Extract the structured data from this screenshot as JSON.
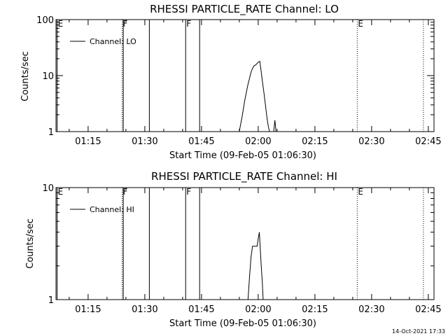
{
  "footer_timestamp": "14-Oct-2021 17:33",
  "chart_data": [
    {
      "type": "line",
      "title": "RHESSI PARTICLE_RATE Channel: LO",
      "xlabel": "Start Time (09-Feb-05 01:06:30)",
      "ylabel": "Counts/sec",
      "yscale": "log",
      "xunit": "minutes after 01:06:30",
      "xlim": [
        0,
        100
      ],
      "ylim": [
        1,
        100
      ],
      "xticks": [
        {
          "v": 8.5,
          "label": "01:15"
        },
        {
          "v": 23.5,
          "label": "01:30"
        },
        {
          "v": 38.5,
          "label": "01:45"
        },
        {
          "v": 53.5,
          "label": "02:00"
        },
        {
          "v": 68.5,
          "label": "02:15"
        },
        {
          "v": 83.5,
          "label": "02:30"
        },
        {
          "v": 98.5,
          "label": "02:45"
        }
      ],
      "yticks": [
        {
          "v": 1,
          "label": "1"
        },
        {
          "v": 10,
          "label": "10"
        },
        {
          "v": 100,
          "label": "100"
        }
      ],
      "legend": {
        "label": "Channel: LO",
        "position": "top-left"
      },
      "markers": [
        {
          "x": 0.3,
          "label": "E",
          "style": "solid"
        },
        {
          "x": 17.5,
          "label": "F",
          "style": "dotted"
        },
        {
          "x": 17.8,
          "label": "",
          "style": "solid"
        },
        {
          "x": 24.7,
          "label": "",
          "style": "solid"
        },
        {
          "x": 34.3,
          "label": "F",
          "style": "solid"
        },
        {
          "x": 38.0,
          "label": "",
          "style": "solid"
        },
        {
          "x": 79.7,
          "label": "E",
          "style": "dotted"
        },
        {
          "x": 97.2,
          "label": "",
          "style": "dotted"
        }
      ],
      "series": [
        {
          "name": "Channel: LO",
          "segments": [
            [
              [
                48.5,
                1.0
              ],
              [
                48.8,
                1.3
              ],
              [
                49.2,
                1.8
              ],
              [
                49.6,
                2.6
              ],
              [
                50.0,
                3.8
              ],
              [
                50.4,
                5.2
              ],
              [
                50.8,
                7.0
              ],
              [
                51.2,
                9.0
              ],
              [
                51.6,
                11.5
              ],
              [
                52.0,
                13.5
              ],
              [
                52.4,
                15.0
              ],
              [
                52.8,
                15.5
              ],
              [
                53.2,
                16.5
              ],
              [
                53.6,
                17.5
              ],
              [
                53.9,
                18.0
              ],
              [
                54.2,
                13.0
              ],
              [
                54.6,
                8.0
              ],
              [
                55.0,
                5.0
              ],
              [
                55.4,
                3.0
              ],
              [
                55.8,
                1.8
              ],
              [
                56.2,
                1.2
              ],
              [
                56.5,
                1.0
              ]
            ],
            [
              [
                57.6,
                1.0
              ],
              [
                57.9,
                1.6
              ],
              [
                58.2,
                1.0
              ]
            ]
          ]
        }
      ]
    },
    {
      "type": "line",
      "title": "RHESSI PARTICLE_RATE Channel: HI",
      "xlabel": "Start Time (09-Feb-05 01:06:30)",
      "ylabel": "Counts/sec",
      "yscale": "log",
      "xunit": "minutes after 01:06:30",
      "xlim": [
        0,
        100
      ],
      "ylim": [
        1,
        10
      ],
      "xticks": [
        {
          "v": 8.5,
          "label": "01:15"
        },
        {
          "v": 23.5,
          "label": "01:30"
        },
        {
          "v": 38.5,
          "label": "01:45"
        },
        {
          "v": 53.5,
          "label": "02:00"
        },
        {
          "v": 68.5,
          "label": "02:15"
        },
        {
          "v": 83.5,
          "label": "02:30"
        },
        {
          "v": 98.5,
          "label": "02:45"
        }
      ],
      "yticks": [
        {
          "v": 1,
          "label": "1"
        },
        {
          "v": 10,
          "label": "10"
        }
      ],
      "legend": {
        "label": "Channel: HI",
        "position": "top-left"
      },
      "markers": [
        {
          "x": 0.3,
          "label": "E",
          "style": "solid"
        },
        {
          "x": 17.5,
          "label": "F",
          "style": "dotted"
        },
        {
          "x": 17.8,
          "label": "",
          "style": "solid"
        },
        {
          "x": 24.7,
          "label": "",
          "style": "solid"
        },
        {
          "x": 34.3,
          "label": "F",
          "style": "solid"
        },
        {
          "x": 38.0,
          "label": "",
          "style": "solid"
        },
        {
          "x": 79.7,
          "label": "E",
          "style": "dotted"
        },
        {
          "x": 97.2,
          "label": "",
          "style": "dotted"
        }
      ],
      "series": [
        {
          "name": "Channel: HI",
          "segments": [
            [
              [
                50.8,
                1.0
              ],
              [
                51.2,
                1.6
              ],
              [
                51.6,
                2.4
              ],
              [
                52.0,
                3.0
              ],
              [
                52.4,
                3.0
              ],
              [
                52.8,
                3.0
              ],
              [
                53.2,
                3.0
              ],
              [
                53.5,
                3.5
              ],
              [
                53.8,
                4.0
              ],
              [
                54.0,
                3.0
              ],
              [
                54.3,
                2.0
              ],
              [
                54.6,
                1.4
              ],
              [
                54.8,
                1.0
              ]
            ]
          ]
        }
      ]
    }
  ]
}
